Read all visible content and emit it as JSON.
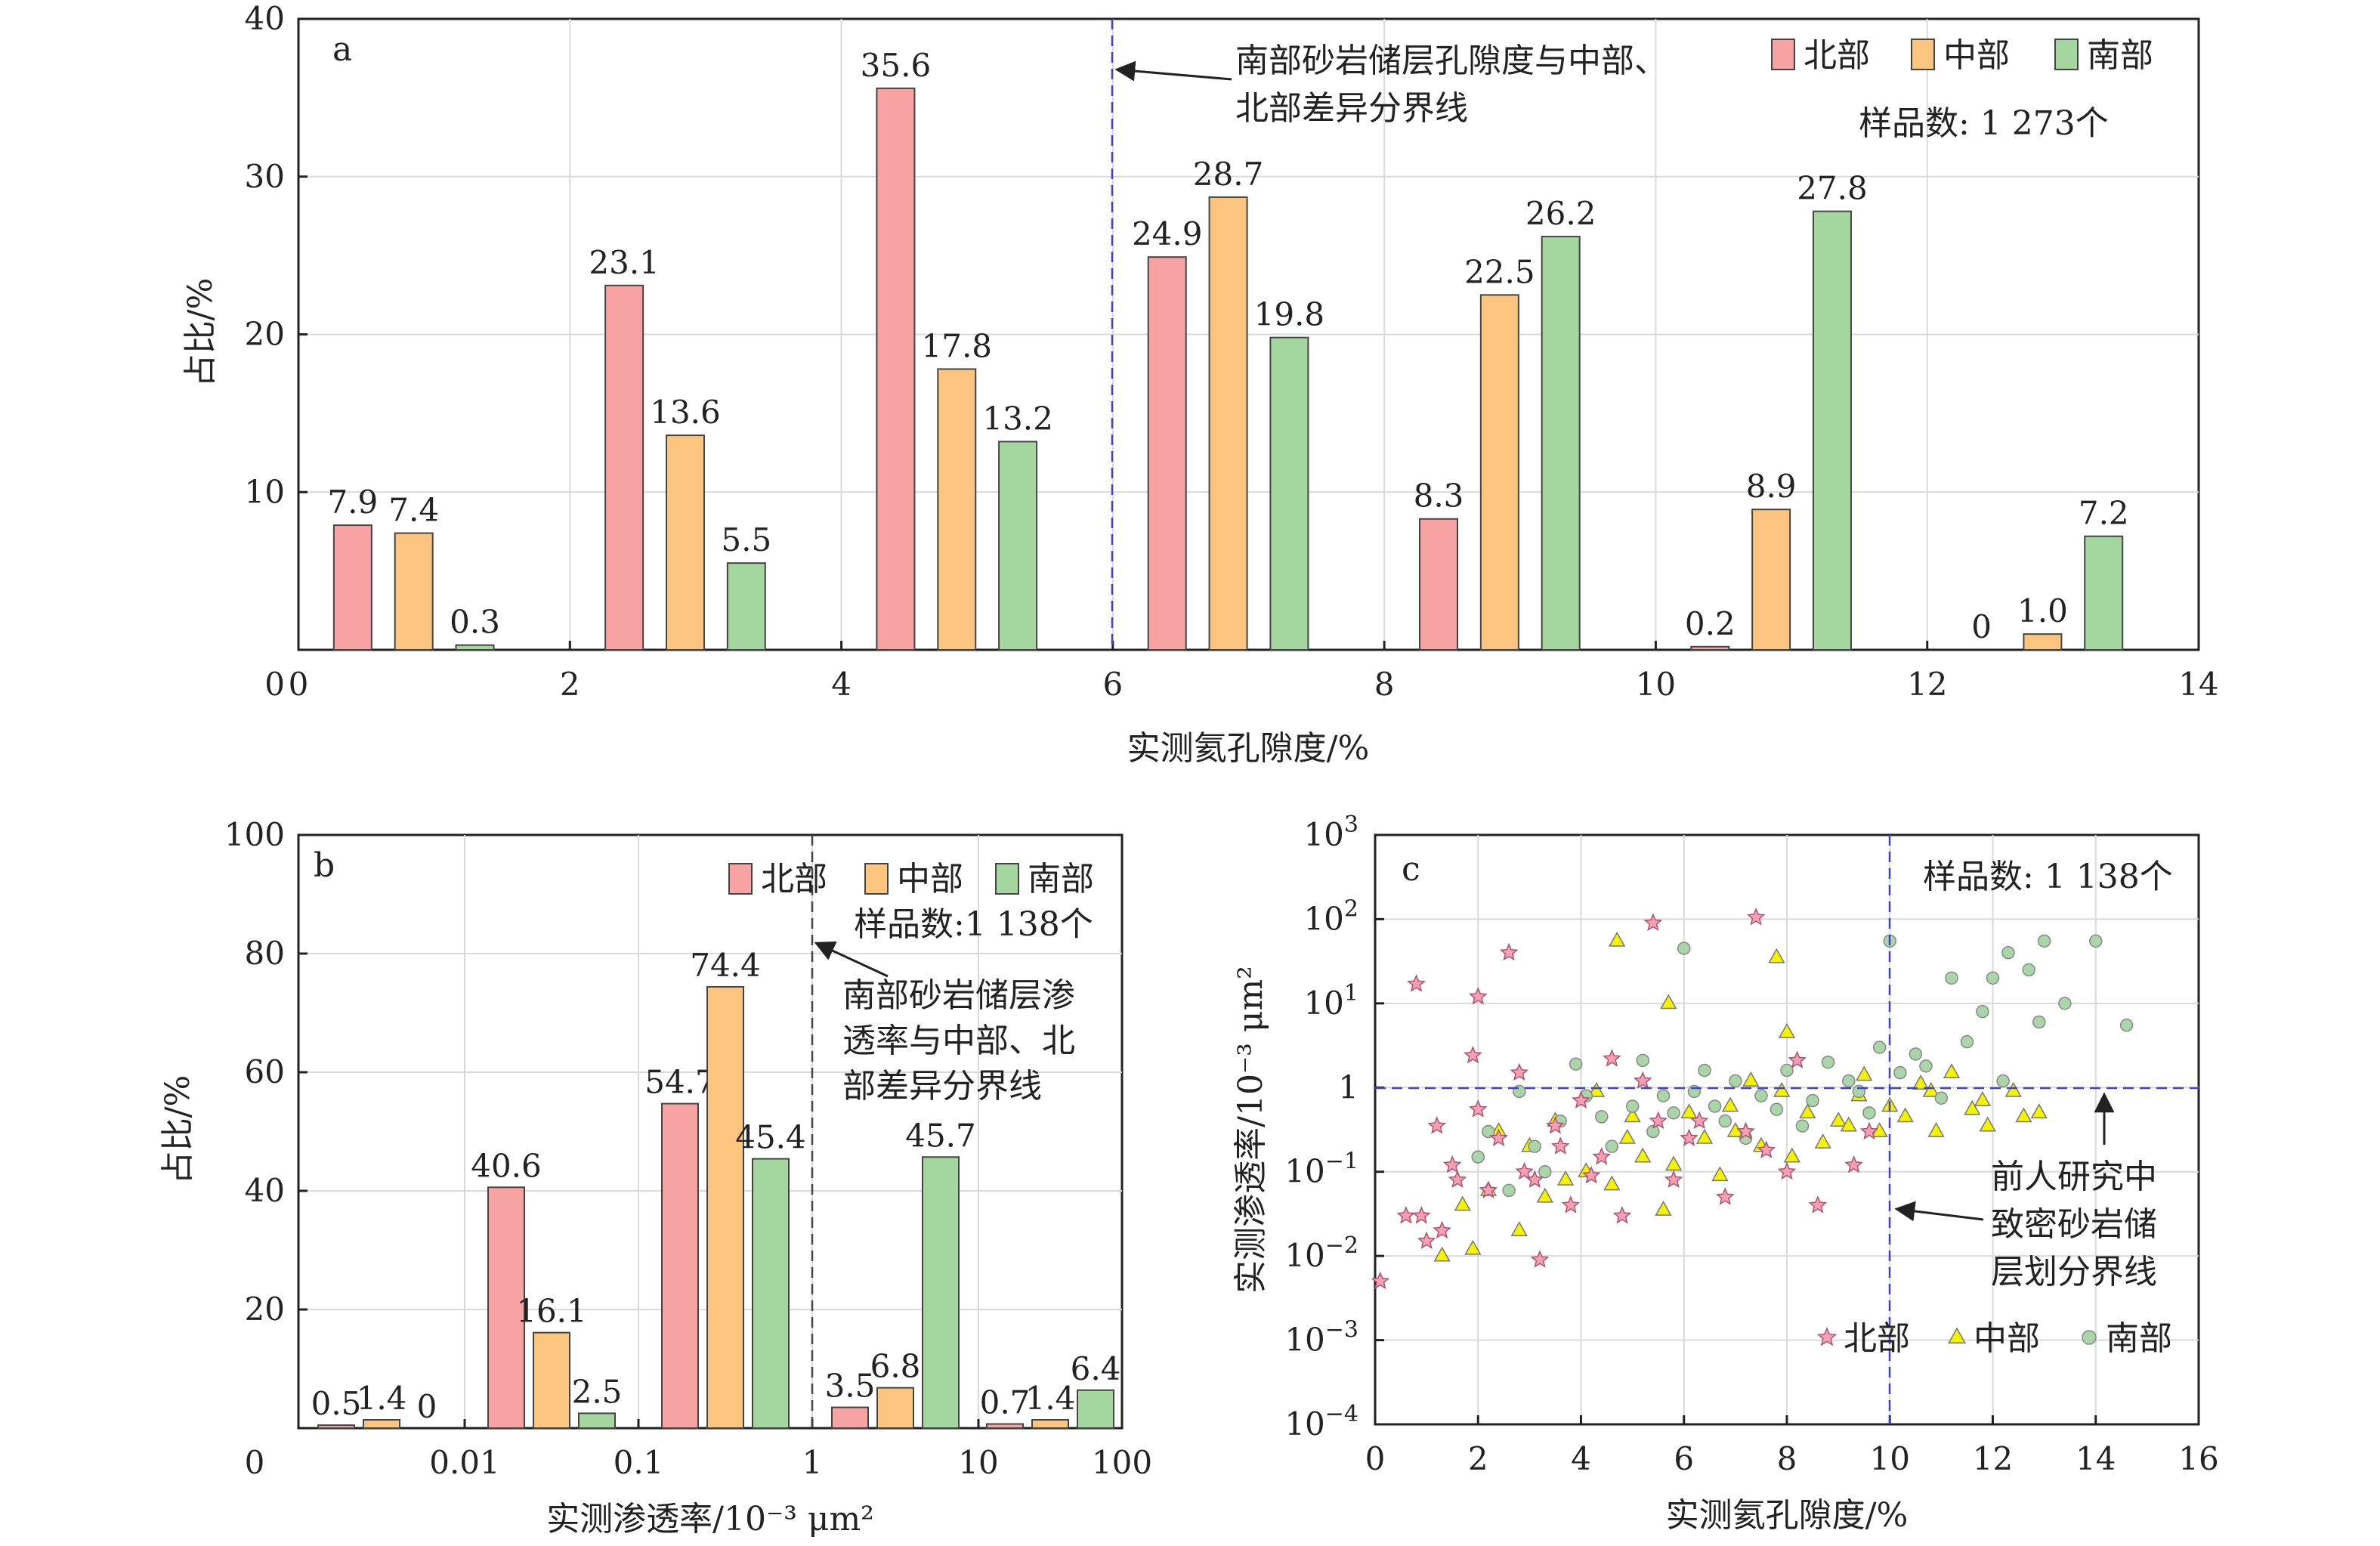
{
  "chart_data": [
    {
      "panel": "a",
      "type": "bar",
      "xlabel": "实测氦孔隙度/%",
      "ylabel": "占比/%",
      "xlim": [
        0,
        14
      ],
      "ylim": [
        0,
        40
      ],
      "xticks": [
        0,
        2,
        4,
        6,
        8,
        10,
        12,
        14
      ],
      "yticks": [
        10,
        20,
        30,
        40
      ],
      "categories": [
        "0-2",
        "2-4",
        "4-6",
        "6-8",
        "8-10",
        "10-12",
        "12-14"
      ],
      "series": [
        {
          "name": "北部",
          "color": "#f7a3a3",
          "values": [
            7.9,
            23.1,
            35.6,
            24.9,
            8.3,
            0.2,
            0
          ]
        },
        {
          "name": "中部",
          "color": "#fbc57f",
          "values": [
            7.4,
            13.6,
            17.8,
            28.7,
            22.5,
            8.9,
            1.0
          ]
        },
        {
          "name": "南部",
          "color": "#a5d6a0",
          "values": [
            0.3,
            5.5,
            13.2,
            19.8,
            26.2,
            27.8,
            7.2
          ]
        }
      ],
      "value_labels": [
        [
          "7.9",
          "23.1",
          "35.6",
          "24.9",
          "8.3",
          "0.2",
          "0"
        ],
        [
          "7.4",
          "13.6",
          "17.8",
          "28.7",
          "22.5",
          "8.9",
          "1.0"
        ],
        [
          "0.3",
          "5.5",
          "13.2",
          "19.8",
          "26.2",
          "27.8",
          "7.2"
        ]
      ],
      "divider_x": 6,
      "divider_text": [
        "南部砂岩储层孔隙度与中部、",
        "北部差异分界线"
      ],
      "sample_text": "样品数: 1 273个",
      "legend_position": "top-right"
    },
    {
      "panel": "b",
      "type": "bar",
      "xlabel": "实测渗透率/10⁻³ μm²",
      "ylabel": "占比/%",
      "ylim": [
        0,
        100
      ],
      "xticks": [
        "0",
        "0.01",
        "0.1",
        "1",
        "10",
        "100"
      ],
      "yticks": [
        20,
        40,
        60,
        80,
        100
      ],
      "categories": [
        "<0.01",
        "0.01-0.1",
        "0.1-1",
        "1-10",
        "10-100"
      ],
      "series": [
        {
          "name": "北部",
          "color": "#f7a3a3",
          "values": [
            0.5,
            40.6,
            54.7,
            3.5,
            0.7
          ]
        },
        {
          "name": "中部",
          "color": "#fbc57f",
          "values": [
            1.4,
            16.1,
            74.4,
            6.8,
            1.4
          ]
        },
        {
          "name": "南部",
          "color": "#a5d6a0",
          "values": [
            0,
            2.5,
            45.4,
            45.7,
            6.4
          ]
        }
      ],
      "value_labels": [
        [
          "0.5",
          "40.6",
          "54.7",
          "3.5",
          "0.7"
        ],
        [
          "1.4",
          "16.1",
          "74.4",
          "6.8",
          "1.4"
        ],
        [
          "0",
          "2.5",
          "45.4",
          "45.7",
          "6.4"
        ]
      ],
      "divider_x": 1,
      "divider_text": [
        "南部砂岩储层渗",
        "透率与中部、北",
        "部差异分界线"
      ],
      "sample_text": "样品数:1 138个",
      "legend_position": "top-right"
    },
    {
      "panel": "c",
      "type": "scatter",
      "xlabel": "实测氦孔隙度/%",
      "ylabel": "实测渗透率/10⁻³ μm²",
      "xlim": [
        0,
        16
      ],
      "ylim": [
        0.0001,
        1000
      ],
      "yscale": "log",
      "xticks": [
        0,
        2,
        4,
        6,
        8,
        10,
        12,
        14,
        16
      ],
      "yticks": [
        0.0001,
        0.001,
        0.01,
        0.1,
        1,
        10,
        100,
        1000
      ],
      "series": [
        {
          "name": "北部",
          "marker": "star",
          "color": "#f4a0b4",
          "points": [
            [
              0.8,
              17
            ],
            [
              2.0,
              12
            ],
            [
              2.6,
              40
            ],
            [
              5.4,
              90
            ],
            [
              7.4,
              105
            ],
            [
              1.9,
              2.4
            ],
            [
              1.2,
              0.35
            ],
            [
              1.5,
              0.12
            ],
            [
              2.2,
              0.06
            ],
            [
              3.1,
              0.08
            ],
            [
              0.9,
              0.03
            ],
            [
              0.6,
              0.03
            ],
            [
              1.3,
              0.02
            ],
            [
              2.8,
              1.5
            ],
            [
              4.0,
              0.7
            ],
            [
              4.6,
              2.2
            ],
            [
              5.2,
              1.2
            ],
            [
              6.3,
              0.4
            ],
            [
              7.2,
              0.3
            ],
            [
              8.0,
              0.1
            ],
            [
              8.6,
              0.04
            ],
            [
              9.3,
              0.12
            ],
            [
              3.2,
              0.009
            ],
            [
              0.1,
              0.005
            ],
            [
              1.0,
              0.015
            ],
            [
              3.6,
              0.2
            ],
            [
              2.4,
              0.25
            ],
            [
              4.4,
              0.15
            ],
            [
              5.8,
              0.08
            ],
            [
              6.8,
              0.05
            ],
            [
              8.2,
              2.1
            ],
            [
              9.6,
              0.3
            ],
            [
              3.8,
              0.04
            ],
            [
              4.8,
              0.03
            ],
            [
              5.5,
              0.4
            ],
            [
              6.1,
              0.25
            ],
            [
              7.6,
              0.18
            ],
            [
              2.0,
              0.55
            ],
            [
              1.6,
              0.08
            ],
            [
              2.9,
              0.1
            ],
            [
              3.5,
              0.35
            ],
            [
              4.2,
              0.09
            ]
          ]
        },
        {
          "name": "中部",
          "marker": "triangle",
          "color": "#f3f200",
          "points": [
            [
              4.7,
              55
            ],
            [
              7.8,
              35
            ],
            [
              5.7,
              10
            ],
            [
              8.0,
              4.5
            ],
            [
              1.3,
              0.01
            ],
            [
              1.9,
              0.012
            ],
            [
              2.8,
              0.02
            ],
            [
              3.3,
              0.05
            ],
            [
              4.1,
              0.1
            ],
            [
              4.6,
              0.07
            ],
            [
              5.2,
              0.15
            ],
            [
              5.8,
              0.12
            ],
            [
              6.4,
              0.25
            ],
            [
              7.0,
              0.3
            ],
            [
              7.5,
              0.2
            ],
            [
              8.4,
              0.5
            ],
            [
              9.0,
              0.4
            ],
            [
              9.4,
              0.8
            ],
            [
              10.0,
              0.6
            ],
            [
              10.6,
              1.1
            ],
            [
              11.2,
              1.5
            ],
            [
              11.8,
              0.7
            ],
            [
              12.4,
              0.9
            ],
            [
              12.9,
              0.5
            ],
            [
              11.6,
              0.55
            ],
            [
              2.4,
              0.3
            ],
            [
              3.0,
              0.2
            ],
            [
              3.7,
              0.08
            ],
            [
              4.3,
              0.9
            ],
            [
              5.0,
              0.45
            ],
            [
              5.6,
              0.035
            ],
            [
              6.1,
              0.5
            ],
            [
              6.7,
              0.09
            ],
            [
              7.3,
              1.2
            ],
            [
              8.1,
              0.15
            ],
            [
              8.7,
              0.22
            ],
            [
              9.2,
              0.35
            ],
            [
              9.8,
              0.3
            ],
            [
              10.3,
              0.45
            ],
            [
              10.9,
              0.3
            ],
            [
              1.7,
              0.04
            ],
            [
              2.2,
              0.06
            ],
            [
              3.5,
              0.4
            ],
            [
              4.9,
              0.25
            ],
            [
              6.9,
              0.6
            ],
            [
              7.9,
              0.9
            ],
            [
              9.5,
              1.4
            ],
            [
              10.8,
              0.9
            ],
            [
              11.9,
              0.35
            ],
            [
              12.6,
              0.45
            ]
          ]
        },
        {
          "name": "南部",
          "marker": "circle",
          "color": "#a9d5a8",
          "points": [
            [
              6.0,
              45
            ],
            [
              10.0,
              55
            ],
            [
              12.3,
              40
            ],
            [
              13.0,
              55
            ],
            [
              14.0,
              55
            ],
            [
              14.6,
              5.5
            ],
            [
              12.0,
              20
            ],
            [
              12.7,
              25
            ],
            [
              11.2,
              20
            ],
            [
              11.8,
              8
            ],
            [
              10.5,
              2.5
            ],
            [
              10.2,
              1.5
            ],
            [
              9.8,
              3
            ],
            [
              9.2,
              1.2
            ],
            [
              8.8,
              2
            ],
            [
              8.5,
              0.7
            ],
            [
              8.0,
              1.6
            ],
            [
              7.5,
              0.8
            ],
            [
              7.0,
              1.2
            ],
            [
              6.6,
              0.6
            ],
            [
              6.2,
              0.9
            ],
            [
              5.8,
              0.5
            ],
            [
              5.4,
              0.3
            ],
            [
              5.0,
              0.6
            ],
            [
              4.6,
              0.2
            ],
            [
              4.1,
              0.8
            ],
            [
              3.6,
              0.4
            ],
            [
              3.1,
              0.2
            ],
            [
              2.8,
              0.9
            ],
            [
              2.2,
              0.3
            ],
            [
              2.0,
              0.15
            ],
            [
              2.6,
              0.06
            ],
            [
              3.3,
              0.1
            ],
            [
              4.4,
              0.45
            ],
            [
              5.6,
              0.8
            ],
            [
              6.8,
              0.4
            ],
            [
              7.8,
              0.55
            ],
            [
              9.4,
              0.9
            ],
            [
              10.7,
              1.8
            ],
            [
              11.5,
              3.5
            ],
            [
              12.2,
              1.2
            ],
            [
              12.9,
              6
            ],
            [
              13.4,
              10
            ],
            [
              11.0,
              0.75
            ],
            [
              9.6,
              0.5
            ],
            [
              8.3,
              0.35
            ],
            [
              7.2,
              0.25
            ],
            [
              6.4,
              1.6
            ],
            [
              5.2,
              2.1
            ],
            [
              3.9,
              1.9
            ]
          ]
        }
      ],
      "divider_x": 10,
      "divider_y": 1,
      "divider_text": [
        "前人研究中",
        "致密砂岩储",
        "层划分界线"
      ],
      "sample_text": "样品数: 1 138个",
      "legend_position": "bottom-right"
    }
  ]
}
